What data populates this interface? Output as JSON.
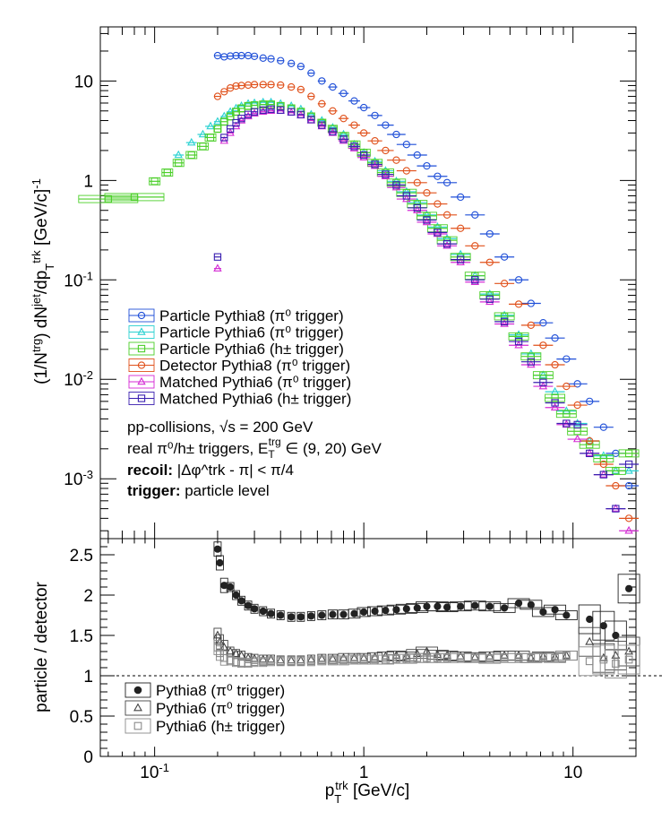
{
  "colors": {
    "particle_pythia8_pi0": "#1f4fd8",
    "particle_pythia6_pi0": "#2ad1d1",
    "particle_pythia6_hpm": "#4ccf2a",
    "detector_pythia8_pi0": "#e0501a",
    "matched_pythia6_pi0": "#d42ad4",
    "matched_pythia6_hpm": "#3a1fb0",
    "ratio_p8": "#222222",
    "ratio_p6_pi0": "#444444",
    "ratio_p6_hpm": "#8a8a8a"
  },
  "chart_data": [
    {
      "type": "scatter",
      "xscale": "log",
      "yscale": "log",
      "xlim": [
        0.055,
        20
      ],
      "ylim": [
        0.00025,
        35
      ],
      "ylabel": "(1/N^trg) dN^jet/dp_T^trk [GeV/c]^-1",
      "y_ticks": [
        "10",
        "1",
        "10^-1",
        "10^-2",
        "10^-3"
      ],
      "legend_position": "middle-left",
      "legend": [
        {
          "label": "Particle Pythia8 (π⁰ trigger)"
        },
        {
          "label": "Particle Pythia6 (π⁰ trigger)"
        },
        {
          "label": "Particle Pythia6 (h± trigger)"
        },
        {
          "label": "Detector Pythia8 (π⁰ trigger)"
        },
        {
          "label": "Matched Pythia6 (π⁰ trigger)"
        },
        {
          "label": "Matched Pythia6 (h± trigger)"
        }
      ],
      "annotations": {
        "line1": "pp-collisions, √s = 200 GeV",
        "line2_prefix": "real π⁰/h± triggers, E",
        "line2_sub": "T",
        "line2_sup": "trg",
        "line2_suffix": " ∈ (9, 20) GeV",
        "recoil_bold": "recoil:",
        "recoil_rest": " |Δφ^trk - π| < π/4",
        "trigger_bold": "trigger:",
        "trigger_rest": " particle level"
      },
      "series": [
        {
          "name": "Particle Pythia8 (π⁰ trigger)",
          "marker": "circle",
          "x": [
            0.2,
            0.215,
            0.23,
            0.245,
            0.26,
            0.28,
            0.3,
            0.33,
            0.36,
            0.4,
            0.45,
            0.5,
            0.56,
            0.63,
            0.71,
            0.8,
            0.9,
            1.0,
            1.13,
            1.27,
            1.43,
            1.6,
            1.8,
            2.0,
            2.25,
            2.5,
            2.9,
            3.4,
            4.0,
            4.7,
            5.5,
            6.3,
            7.2,
            8.2,
            9.3,
            10.5,
            12.0,
            14.0,
            16.0,
            18.5
          ],
          "y": [
            18.0,
            17.5,
            17.8,
            18.0,
            18.0,
            18.0,
            17.7,
            17.0,
            16.7,
            16.0,
            15.0,
            14.0,
            12.0,
            10.0,
            8.7,
            7.5,
            6.3,
            5.4,
            4.5,
            3.6,
            2.9,
            2.3,
            1.8,
            1.4,
            1.1,
            0.95,
            0.68,
            0.45,
            0.29,
            0.17,
            0.1,
            0.058,
            0.037,
            0.026,
            0.016,
            0.009,
            0.006,
            0.0033,
            0.0018,
            0.00085
          ]
        },
        {
          "name": "Particle Pythia6 (π⁰ trigger)",
          "marker": "triangle",
          "x": [
            0.13,
            0.15,
            0.17,
            0.185,
            0.2,
            0.215,
            0.23,
            0.245,
            0.26,
            0.28,
            0.3,
            0.33,
            0.36,
            0.4,
            0.45,
            0.5,
            0.56,
            0.63,
            0.71,
            0.8,
            0.9,
            1.0,
            1.13,
            1.27,
            1.43,
            1.6,
            1.8,
            2.0,
            2.25,
            2.5,
            2.9,
            3.4,
            4.0,
            4.7,
            5.5,
            6.3,
            7.2,
            8.2,
            9.3,
            10.5,
            12.0,
            14.0,
            16.0,
            18.5
          ],
          "y": [
            1.8,
            2.4,
            2.9,
            3.5,
            3.9,
            4.4,
            4.9,
            5.3,
            5.6,
            5.9,
            6.0,
            6.1,
            6.1,
            5.9,
            5.6,
            5.2,
            4.6,
            4.0,
            3.4,
            2.9,
            2.3,
            1.9,
            1.55,
            1.25,
            0.98,
            0.77,
            0.6,
            0.45,
            0.34,
            0.26,
            0.18,
            0.11,
            0.072,
            0.044,
            0.028,
            0.018,
            0.011,
            0.0075,
            0.0048,
            0.0036,
            0.0024,
            0.0017,
            0.0012,
            0.0012
          ]
        },
        {
          "name": "Particle Pythia6 (h± trigger)",
          "marker": "square",
          "x": [
            0.06,
            0.08,
            0.1,
            0.115,
            0.13,
            0.15,
            0.17,
            0.185,
            0.2,
            0.215,
            0.23,
            0.245,
            0.26,
            0.28,
            0.3,
            0.33,
            0.36,
            0.4,
            0.45,
            0.5,
            0.56,
            0.63,
            0.71,
            0.8,
            0.9,
            1.0,
            1.13,
            1.27,
            1.43,
            1.6,
            1.8,
            2.0,
            2.25,
            2.5,
            2.9,
            3.4,
            4.0,
            4.7,
            5.5,
            6.3,
            7.2,
            8.2,
            9.3,
            10.5,
            12.0,
            14.0,
            16.0,
            18.5
          ],
          "y": [
            0.65,
            0.68,
            0.98,
            1.2,
            1.5,
            1.8,
            2.2,
            2.7,
            3.3,
            3.9,
            4.4,
            4.9,
            5.3,
            5.6,
            5.7,
            5.8,
            5.8,
            5.6,
            5.3,
            4.9,
            4.4,
            3.8,
            3.3,
            2.8,
            2.3,
            1.9,
            1.5,
            1.2,
            0.95,
            0.75,
            0.58,
            0.44,
            0.33,
            0.25,
            0.17,
            0.11,
            0.07,
            0.043,
            0.027,
            0.017,
            0.011,
            0.0065,
            0.0045,
            0.003,
            0.0022,
            0.0016,
            0.0012,
            0.0018
          ]
        },
        {
          "name": "Detector Pythia8 (π⁰ trigger)",
          "marker": "circle",
          "x": [
            0.2,
            0.215,
            0.23,
            0.245,
            0.26,
            0.28,
            0.3,
            0.33,
            0.36,
            0.4,
            0.45,
            0.5,
            0.56,
            0.63,
            0.71,
            0.8,
            0.9,
            1.0,
            1.13,
            1.27,
            1.43,
            1.6,
            1.8,
            2.0,
            2.25,
            2.5,
            2.9,
            3.4,
            4.0,
            4.7,
            5.5,
            6.3,
            7.2,
            8.2,
            9.3,
            10.5,
            12.0,
            14.0,
            16.0,
            18.5
          ],
          "y": [
            7.0,
            7.8,
            8.5,
            8.9,
            9.0,
            9.1,
            9.2,
            9.2,
            9.2,
            9.1,
            8.7,
            8.2,
            7.0,
            5.9,
            5.0,
            4.2,
            3.6,
            3.0,
            2.5,
            2.0,
            1.6,
            1.25,
            0.95,
            0.75,
            0.58,
            0.45,
            0.33,
            0.22,
            0.15,
            0.092,
            0.057,
            0.035,
            0.022,
            0.014,
            0.0085,
            0.0055,
            0.0024,
            0.0014,
            0.00085,
            0.0004
          ]
        },
        {
          "name": "Matched Pythia6 (π⁰ trigger)",
          "marker": "triangle",
          "x": [
            0.2,
            0.215,
            0.23,
            0.245,
            0.26,
            0.28,
            0.3,
            0.33,
            0.36,
            0.4,
            0.45,
            0.5,
            0.56,
            0.63,
            0.71,
            0.8,
            0.9,
            1.0,
            1.13,
            1.27,
            1.43,
            1.6,
            1.8,
            2.0,
            2.25,
            2.5,
            2.9,
            3.4,
            4.0,
            4.7,
            5.5,
            6.3,
            7.2,
            8.2,
            9.3,
            10.5,
            12.0,
            14.0,
            16.0,
            18.5
          ],
          "y": [
            0.13,
            2.5,
            3.0,
            3.5,
            4.0,
            4.4,
            4.7,
            4.9,
            5.0,
            5.0,
            4.8,
            4.5,
            4.0,
            3.5,
            3.0,
            2.5,
            2.1,
            1.7,
            1.4,
            1.1,
            0.85,
            0.65,
            0.5,
            0.38,
            0.29,
            0.22,
            0.15,
            0.095,
            0.06,
            0.036,
            0.022,
            0.014,
            0.0085,
            0.0052,
            0.0035,
            0.0025,
            0.0018,
            0.0011,
            0.0005,
            0.0003
          ]
        },
        {
          "name": "Matched Pythia6 (h± trigger)",
          "marker": "square",
          "x": [
            0.2,
            0.215,
            0.23,
            0.245,
            0.26,
            0.28,
            0.3,
            0.33,
            0.36,
            0.4,
            0.45,
            0.5,
            0.56,
            0.63,
            0.71,
            0.8,
            0.9,
            1.0,
            1.13,
            1.27,
            1.43,
            1.6,
            1.8,
            2.0,
            2.25,
            2.5,
            2.9,
            3.4,
            4.0,
            4.7,
            5.5,
            6.3,
            7.2,
            8.2,
            9.3,
            10.5,
            12.0,
            14.0,
            16.0,
            18.5
          ],
          "y": [
            0.17,
            2.7,
            3.3,
            3.8,
            4.2,
            4.6,
            4.9,
            5.1,
            5.2,
            5.1,
            4.9,
            4.6,
            4.1,
            3.6,
            3.1,
            2.6,
            2.2,
            1.8,
            1.45,
            1.15,
            0.9,
            0.7,
            0.53,
            0.4,
            0.3,
            0.23,
            0.16,
            0.1,
            0.064,
            0.038,
            0.024,
            0.015,
            0.0093,
            0.0058,
            0.0036,
            0.0035,
            0.0018,
            0.0011,
            0.0005,
            0.0014
          ]
        }
      ]
    },
    {
      "type": "scatter",
      "xscale": "log",
      "xlim": [
        0.055,
        20
      ],
      "ylim": [
        0,
        2.7
      ],
      "xlabel": "p_T^trk [GeV/c]",
      "ylabel": "particle / detector",
      "x_ticks": [
        "10^-1",
        "1",
        "10"
      ],
      "y_ticks": [
        "0",
        "0.5",
        "1",
        "1.5",
        "2",
        "2.5"
      ],
      "reference_line": 1,
      "legend_position": "bottom-left",
      "legend": [
        {
          "label": "Pythia8 (π⁰ trigger)"
        },
        {
          "label": "Pythia6 (π⁰ trigger)"
        },
        {
          "label": "Pythia6 (h± trigger)"
        }
      ],
      "series": [
        {
          "name": "Pythia8 (π⁰ trigger)",
          "marker": "filled-circle",
          "x": [
            0.2,
            0.205,
            0.215,
            0.23,
            0.245,
            0.26,
            0.28,
            0.3,
            0.33,
            0.36,
            0.4,
            0.45,
            0.5,
            0.56,
            0.63,
            0.71,
            0.8,
            0.9,
            1.0,
            1.13,
            1.27,
            1.43,
            1.6,
            1.8,
            2.0,
            2.25,
            2.5,
            2.9,
            3.4,
            4.0,
            4.7,
            5.5,
            6.3,
            7.2,
            8.2,
            9.3,
            12.0,
            14.0,
            16.0,
            18.5
          ],
          "y": [
            2.57,
            2.4,
            2.12,
            2.1,
            2.0,
            1.93,
            1.87,
            1.83,
            1.8,
            1.77,
            1.75,
            1.73,
            1.73,
            1.74,
            1.75,
            1.76,
            1.76,
            1.77,
            1.79,
            1.8,
            1.81,
            1.82,
            1.83,
            1.84,
            1.86,
            1.86,
            1.85,
            1.86,
            1.87,
            1.86,
            1.84,
            1.9,
            1.88,
            1.79,
            1.82,
            1.75,
            1.7,
            1.62,
            1.5,
            2.08
          ]
        },
        {
          "name": "Pythia6 (π⁰ trigger)",
          "marker": "triangle",
          "x": [
            0.2,
            0.205,
            0.215,
            0.23,
            0.245,
            0.26,
            0.28,
            0.3,
            0.33,
            0.36,
            0.4,
            0.45,
            0.5,
            0.56,
            0.63,
            0.71,
            0.8,
            0.9,
            1.0,
            1.13,
            1.27,
            1.43,
            1.6,
            1.8,
            2.0,
            2.25,
            2.5,
            2.9,
            3.4,
            4.0,
            4.7,
            5.5,
            6.3,
            7.2,
            8.2,
            9.3,
            12.0,
            14.0,
            16.0,
            18.5
          ],
          "y": [
            1.5,
            1.42,
            1.35,
            1.3,
            1.27,
            1.25,
            1.22,
            1.21,
            1.2,
            1.2,
            1.19,
            1.19,
            1.19,
            1.2,
            1.21,
            1.21,
            1.22,
            1.22,
            1.22,
            1.23,
            1.24,
            1.25,
            1.24,
            1.27,
            1.3,
            1.26,
            1.25,
            1.24,
            1.23,
            1.24,
            1.25,
            1.25,
            1.22,
            1.24,
            1.23,
            1.25,
            1.42,
            1.22,
            1.25,
            1.3
          ]
        },
        {
          "name": "Pythia6 (h± trigger)",
          "marker": "square",
          "x": [
            0.2,
            0.205,
            0.215,
            0.23,
            0.245,
            0.26,
            0.28,
            0.3,
            0.33,
            0.36,
            0.4,
            0.45,
            0.5,
            0.56,
            0.63,
            0.71,
            0.8,
            0.9,
            1.0,
            1.13,
            1.27,
            1.43,
            1.6,
            1.8,
            2.0,
            2.25,
            2.5,
            2.9,
            3.4,
            4.0,
            4.7,
            5.5,
            6.3,
            7.2,
            8.2,
            9.3,
            12.0,
            14.0,
            16.0,
            18.5
          ],
          "y": [
            1.35,
            1.28,
            1.22,
            1.19,
            1.17,
            1.16,
            1.16,
            1.17,
            1.17,
            1.18,
            1.18,
            1.18,
            1.18,
            1.18,
            1.19,
            1.19,
            1.19,
            1.2,
            1.2,
            1.2,
            1.2,
            1.21,
            1.21,
            1.22,
            1.22,
            1.22,
            1.22,
            1.22,
            1.22,
            1.21,
            1.22,
            1.22,
            1.22,
            1.23,
            1.22,
            1.25,
            1.18,
            1.2,
            1.15,
            1.2
          ]
        }
      ]
    }
  ]
}
